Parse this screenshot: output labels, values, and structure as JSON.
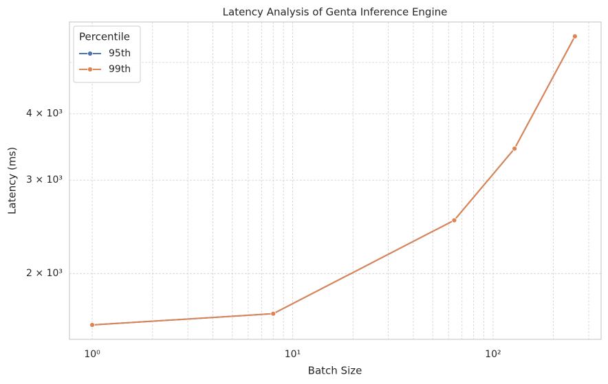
{
  "chart_data": {
    "type": "line",
    "title": "Latency Analysis of Genta Inference Engine",
    "x_label": "Batch Size",
    "y_label": "Latency (ms)",
    "x": [
      1,
      8,
      64,
      128,
      256
    ],
    "series": [
      {
        "name": "95th",
        "color": "#4c72b0",
        "values": [
          1600,
          1680,
          2520,
          3440,
          5600
        ]
      },
      {
        "name": "99th",
        "color": "#dd8452",
        "values": [
          1600,
          1680,
          2520,
          3440,
          5600
        ]
      }
    ],
    "xscale": "log",
    "yscale": "log",
    "xlim": [
      0.77,
      346
    ],
    "ylim": [
      1503,
      5960
    ],
    "xticks": [
      {
        "value": 1,
        "label": "10⁰"
      },
      {
        "value": 10,
        "label": "10¹"
      },
      {
        "value": 100,
        "label": "10²"
      }
    ],
    "xminorticks": [
      2,
      3,
      4,
      5,
      6,
      7,
      8,
      9,
      20,
      30,
      40,
      50,
      60,
      70,
      80,
      90,
      200,
      300
    ],
    "yticks": [
      {
        "value": 2000,
        "label": "2 × 10³"
      },
      {
        "value": 3000,
        "label": "3 × 10³"
      },
      {
        "value": 4000,
        "label": "4 × 10³"
      }
    ],
    "yminorticks": [
      5000
    ],
    "grid": true,
    "legend_title": "Percentile",
    "legend_loc": "upper left"
  }
}
